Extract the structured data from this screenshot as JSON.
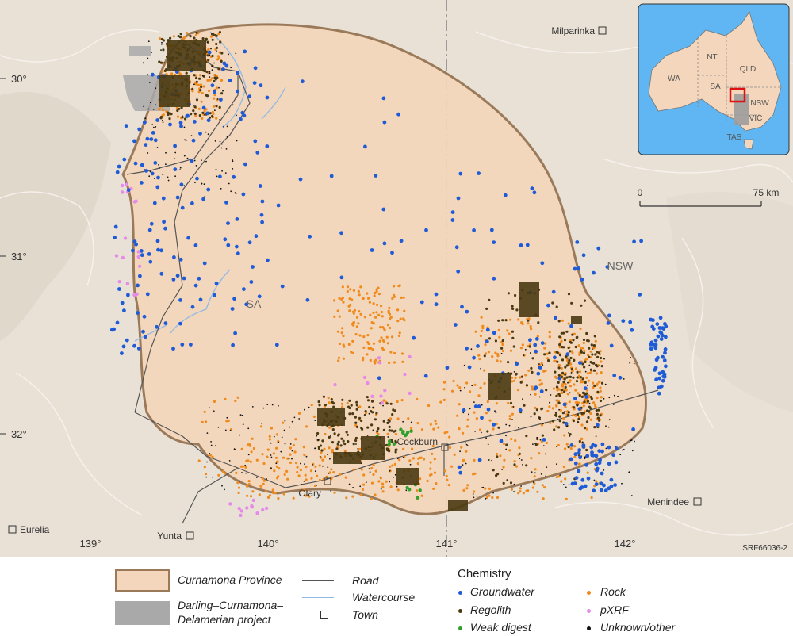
{
  "map": {
    "code": "SRF66036-2",
    "state_labels": {
      "sa": "SA",
      "nsw": "NSW"
    },
    "latitudes": [
      "30°",
      "31°",
      "32°"
    ],
    "longitudes": [
      "139°",
      "140°",
      "141°",
      "142°"
    ],
    "towns": [
      {
        "name": "Milparinka"
      },
      {
        "name": "Cockburn"
      },
      {
        "name": "Olary"
      },
      {
        "name": "Yunta"
      },
      {
        "name": "Eurelia"
      },
      {
        "name": "Menindee"
      }
    ],
    "scale_bar": {
      "start": "0",
      "end": "75 km"
    },
    "colors": {
      "province_fill": "#f3d6bb",
      "province_border": "#9b7a5a",
      "project_area": "#a9a9a9",
      "groundwater": "#1f5bd6",
      "regolith": "#4a3a12",
      "weak_digest": "#2ea02e",
      "rock": "#f08a1c",
      "pxrf": "#e58ae8",
      "unknown_other": "#111111",
      "road": "#555555",
      "watercourse": "#8fb9e6"
    }
  },
  "inset": {
    "labels": [
      "NT",
      "QLD",
      "WA",
      "SA",
      "NSW",
      "VIC",
      "TAS"
    ]
  },
  "legend": {
    "province": "Curnamona Province",
    "project_line1": "Darling–Curnamona–",
    "project_line2": "Delamerian project",
    "road": "Road",
    "watercourse": "Watercourse",
    "town": "Town",
    "chemistry_title": "Chemistry",
    "groundwater": "Groundwater",
    "regolith": "Regolith",
    "weak_digest": "Weak digest",
    "rock": "Rock",
    "pxrf": "pXRF",
    "unknown_other": "Unknown/other"
  }
}
